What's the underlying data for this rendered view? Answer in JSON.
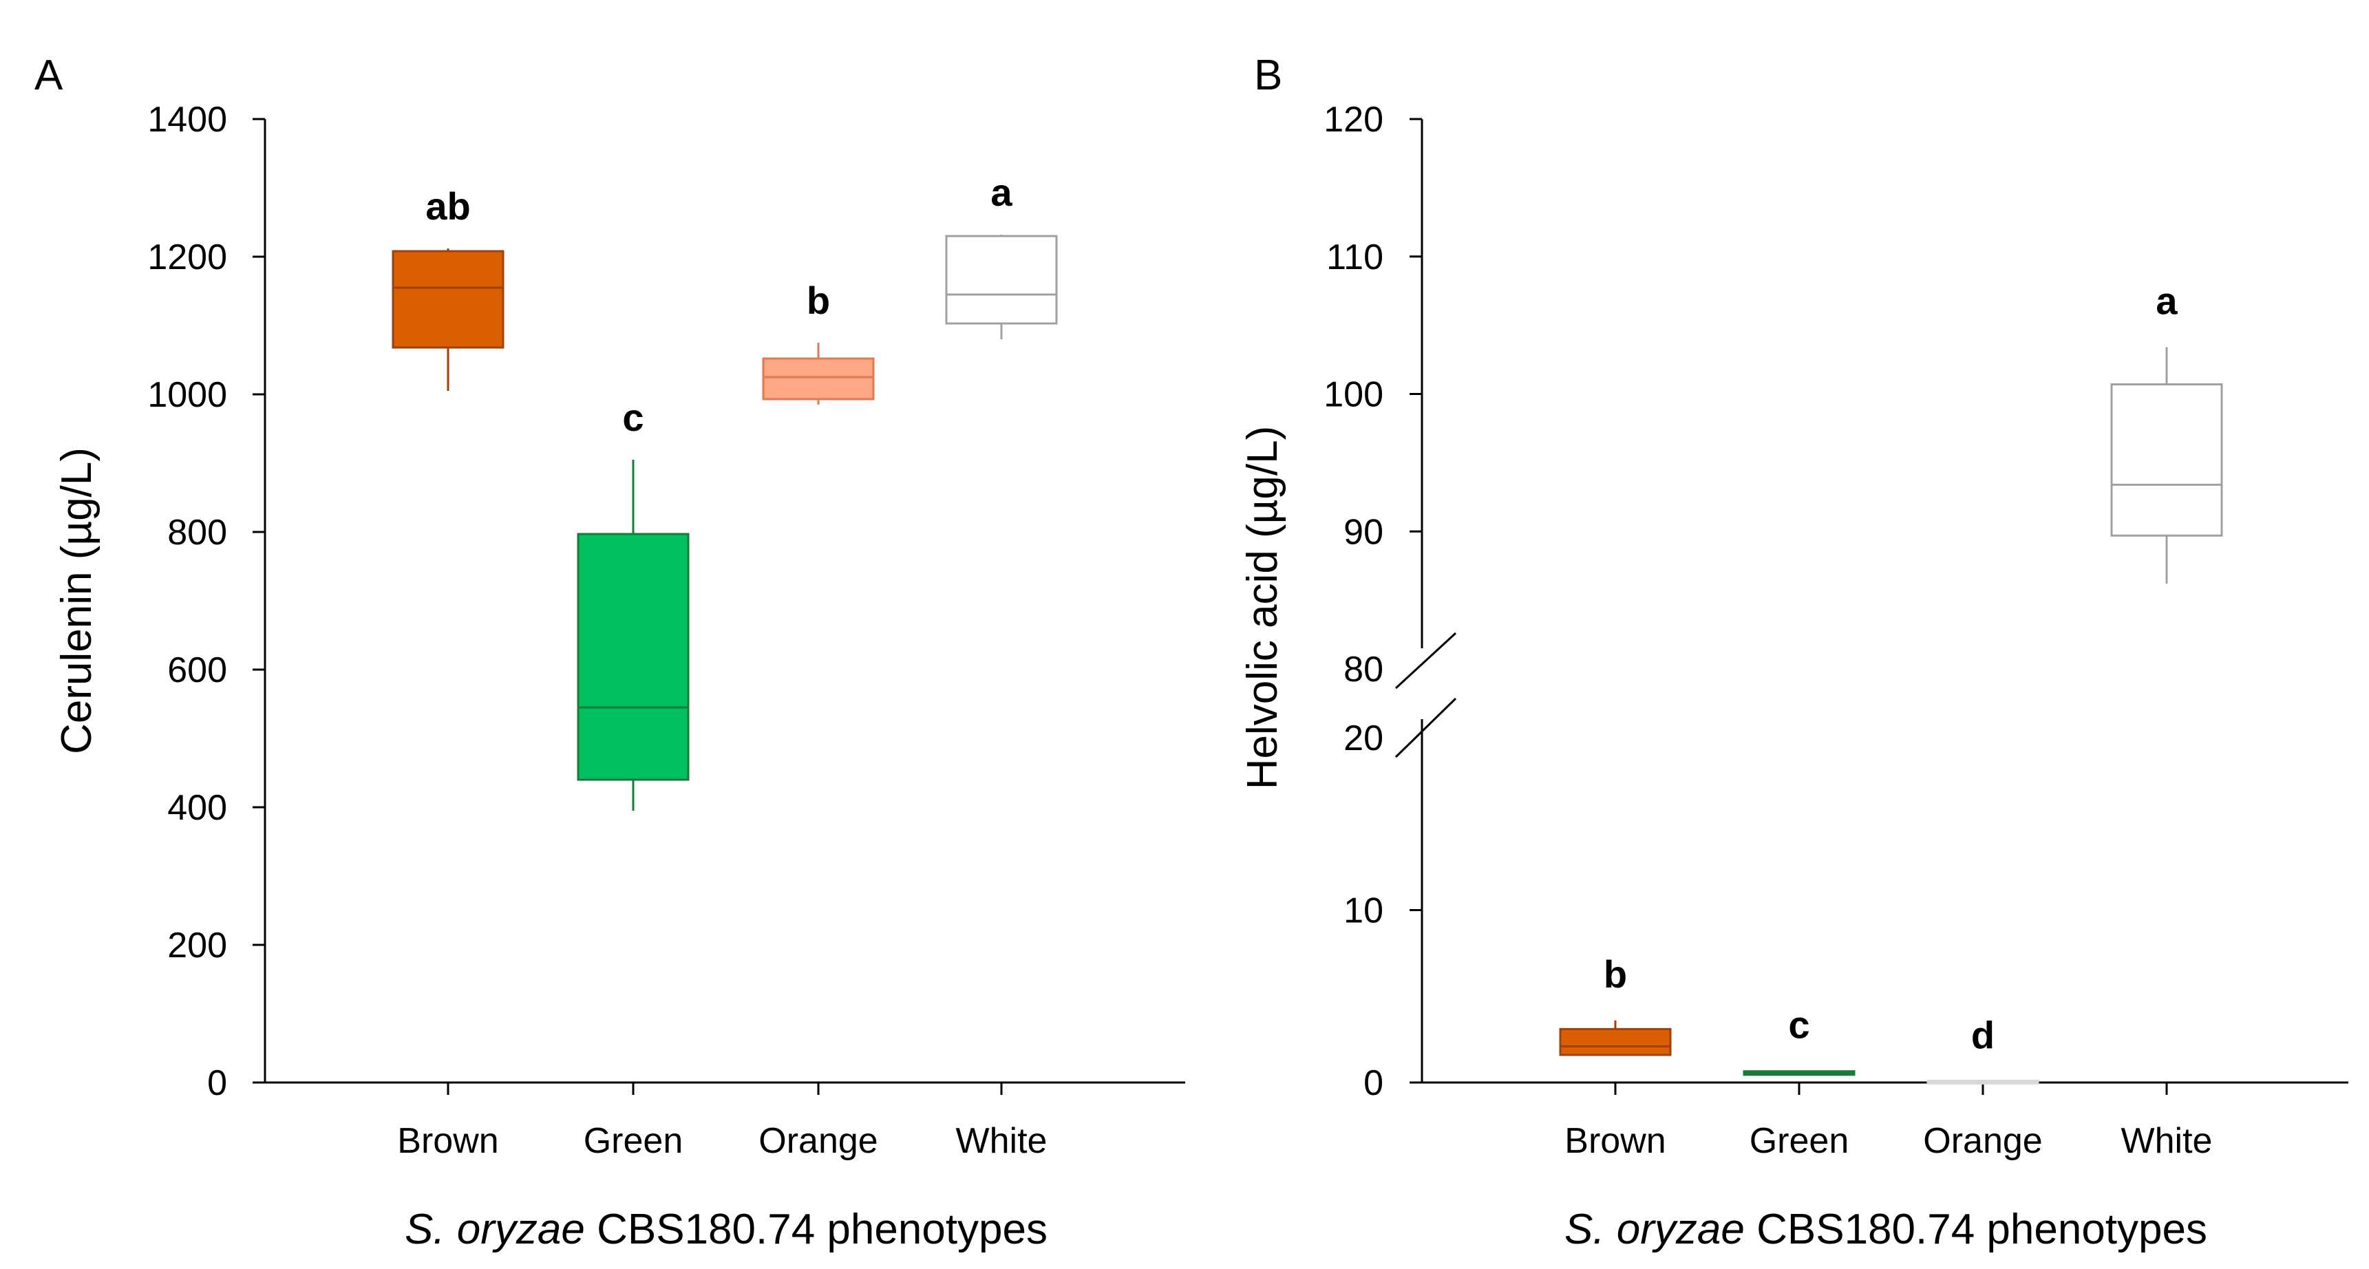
{
  "chart_data": [
    {
      "panel": "A",
      "type": "box",
      "ylabel": "Cerulenin (µg/L)",
      "xlabel_italic": "S. oryzae",
      "xlabel_rest": " CBS180.74 phenotypes",
      "ylim": [
        0,
        1400
      ],
      "yticks": [
        0,
        200,
        400,
        600,
        800,
        1000,
        1200,
        1400
      ],
      "categories": [
        "Brown",
        "Green",
        "Orange",
        "White"
      ],
      "boxes": [
        {
          "category": "Brown",
          "min": 1005,
          "q1": 1068,
          "median": 1155,
          "q3": 1208,
          "max": 1212,
          "letter": "ab",
          "fill": "#d95f02",
          "stroke": "#a0400a"
        },
        {
          "category": "Green",
          "min": 395,
          "q1": 440,
          "median": 545,
          "q3": 797,
          "max": 905,
          "letter": "c",
          "fill": "#00c060",
          "stroke": "#1a7a3a"
        },
        {
          "category": "Orange",
          "min": 985,
          "q1": 993,
          "median": 1025,
          "q3": 1052,
          "max": 1075,
          "letter": "b",
          "fill": "#fca785",
          "stroke": "#e07a50"
        },
        {
          "category": "White",
          "min": 1080,
          "q1": 1103,
          "median": 1145,
          "q3": 1230,
          "max": 1232,
          "letter": "a",
          "fill": "#ffffff",
          "stroke": "#a0a0a0"
        }
      ]
    },
    {
      "panel": "B",
      "type": "box",
      "ylabel": "Helvolic acid (µg/L)",
      "xlabel_italic": "S. oryzae",
      "xlabel_rest": " CBS180.74 phenotypes",
      "axis_break": [
        20,
        80
      ],
      "ylim_lower": [
        0,
        20
      ],
      "ylim_upper": [
        80,
        120
      ],
      "yticks_lower": [
        0,
        10,
        20
      ],
      "yticks_upper": [
        80,
        90,
        100,
        110,
        120
      ],
      "categories": [
        "Brown",
        "Green",
        "Orange",
        "White"
      ],
      "boxes": [
        {
          "category": "Brown",
          "min": 1.6,
          "q1": 1.6,
          "median": 2.1,
          "q3": 3.1,
          "max": 3.6,
          "letter": "b",
          "fill": "#d95f02",
          "stroke": "#a0400a"
        },
        {
          "category": "Green",
          "min": 0.45,
          "q1": 0.45,
          "median": 0.55,
          "q3": 0.65,
          "max": 0.65,
          "letter": "c",
          "fill": "#00c060",
          "stroke": "#1a7a3a"
        },
        {
          "category": "Orange",
          "min": 0.0,
          "q1": 0.0,
          "median": 0.0,
          "q3": 0.05,
          "max": 0.05,
          "letter": "d",
          "fill": "#fca785",
          "stroke": "#d8d8d8"
        },
        {
          "category": "White",
          "min": 86.2,
          "q1": 89.7,
          "median": 93.4,
          "q3": 100.7,
          "max": 103.4,
          "letter": "a",
          "fill": "#ffffff",
          "stroke": "#a0a0a0"
        }
      ]
    }
  ]
}
